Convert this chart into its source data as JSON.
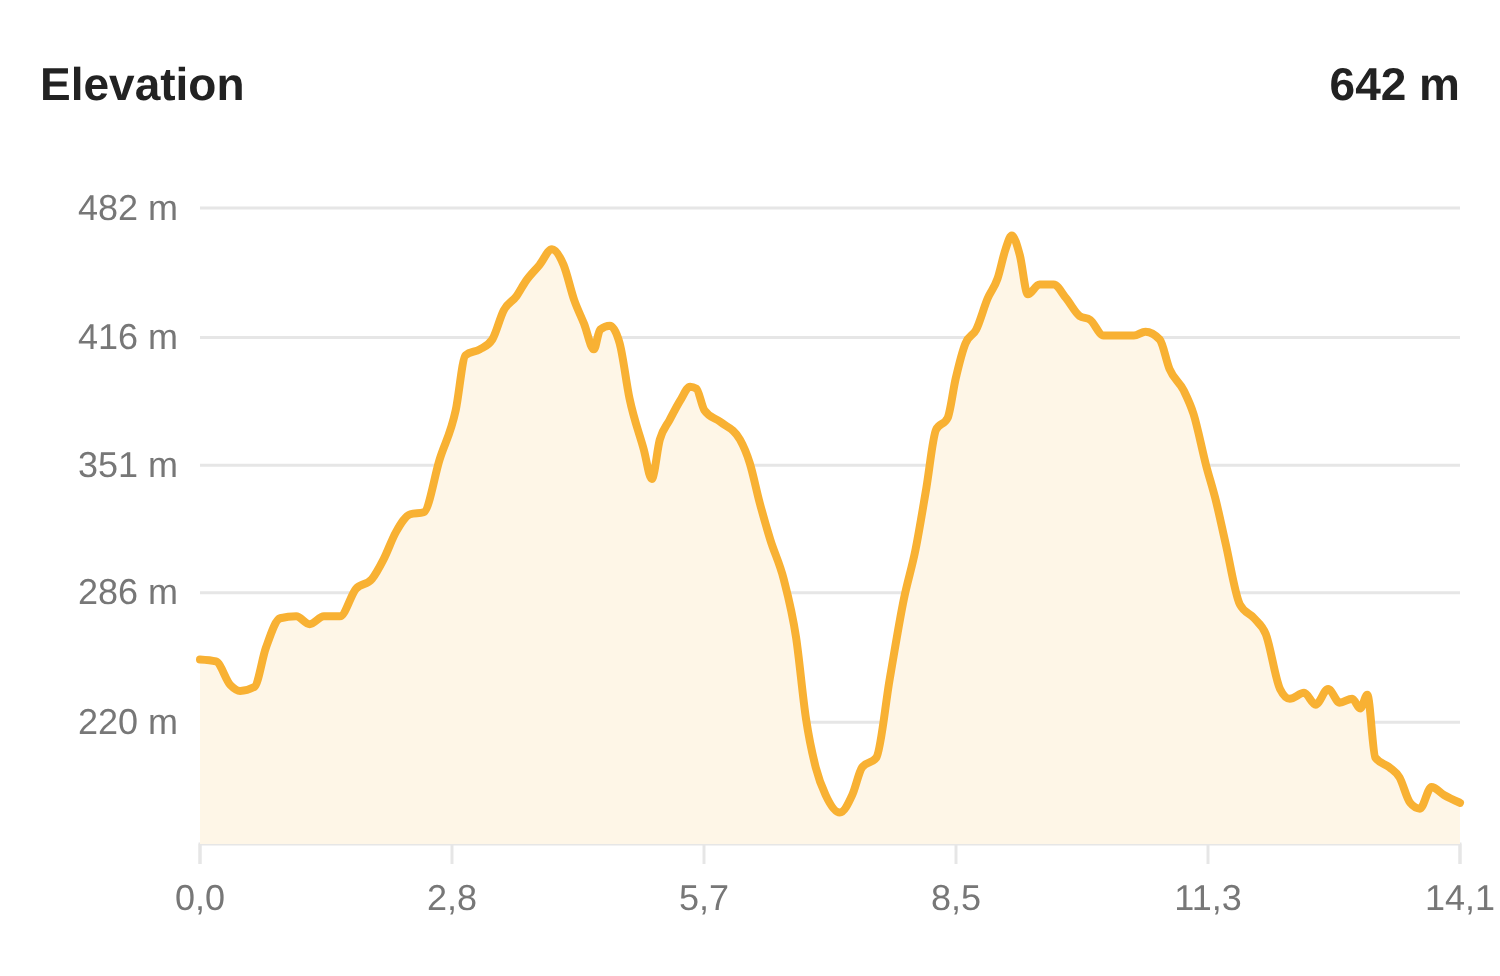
{
  "chart_data": {
    "type": "area",
    "title": "Elevation",
    "subtitle": "642 m",
    "x": [
      0,
      0.18,
      0.34,
      0.45,
      0.61,
      0.74,
      0.9,
      1.08,
      1.23,
      1.39,
      1.57,
      1.75,
      1.93,
      2.06,
      2.2,
      2.36,
      2.51,
      2.69,
      2.87,
      2.98,
      3.14,
      3.28,
      3.41,
      3.55,
      3.66,
      3.81,
      3.95,
      4.08,
      4.2,
      4.31,
      4.42,
      4.49,
      4.6,
      4.71,
      4.82,
      4.98,
      5.07,
      5.16,
      5.27,
      5.39,
      5.5,
      5.57,
      5.66,
      5.84,
      6.06,
      6.17,
      6.28,
      6.4,
      6.55,
      6.69,
      6.8,
      6.91,
      7.02,
      7.18,
      7.32,
      7.43,
      7.59,
      7.74,
      7.9,
      8.03,
      8.15,
      8.26,
      8.39,
      8.48,
      8.59,
      8.71,
      8.84,
      8.95,
      9.04,
      9.11,
      9.2,
      9.29,
      9.42,
      9.58,
      9.72,
      9.87,
      9.99,
      10.14,
      10.32,
      10.48,
      10.61,
      10.77,
      10.88,
      11.04,
      11.15,
      11.29,
      11.4,
      11.51,
      11.67,
      11.83,
      11.96,
      12.12,
      12.23,
      12.39,
      12.52,
      12.66,
      12.79,
      12.93,
      13.02,
      13.1,
      13.19,
      13.35,
      13.46,
      13.58,
      13.69,
      13.82,
      13.96,
      14.14
    ],
    "series": [
      {
        "color": "#f8b133",
        "values": [
          252,
          251,
          239,
          236,
          238,
          258,
          273,
          274,
          270,
          274,
          274,
          288,
          293,
          303,
          317,
          326,
          327,
          354,
          379,
          407,
          410,
          415,
          430,
          437,
          445,
          453,
          461,
          453,
          435,
          423,
          410,
          420,
          422,
          413,
          385,
          359,
          344,
          364,
          374,
          384,
          391,
          390,
          379,
          373,
          364,
          352,
          332,
          313,
          293,
          263,
          222,
          197,
          183,
          174,
          183,
          197,
          202,
          242,
          283,
          308,
          339,
          369,
          375,
          395,
          413,
          420,
          436,
          446,
          461,
          468,
          458,
          438,
          443,
          443,
          436,
          427,
          425,
          417,
          417,
          417,
          419,
          415,
          400,
          389,
          377,
          351,
          333,
          311,
          280,
          273,
          265,
          237,
          232,
          235,
          229,
          237,
          230,
          232,
          227,
          234,
          202,
          197,
          192,
          179,
          176,
          187,
          183,
          179
        ]
      }
    ],
    "xlim": [
      0,
      14.14
    ],
    "ylim": [
      158,
      482
    ],
    "xticks": [
      {
        "value": 0,
        "label": "0,0"
      },
      {
        "value": 2.828,
        "label": "2,8"
      },
      {
        "value": 5.656,
        "label": "5,7"
      },
      {
        "value": 8.484,
        "label": "8,5"
      },
      {
        "value": 11.312,
        "label": "11,3"
      },
      {
        "value": 14.14,
        "label": "14,1"
      }
    ],
    "yticks": [
      {
        "value": 220,
        "label": "220 m"
      },
      {
        "value": 286,
        "label": "286 m"
      },
      {
        "value": 351,
        "label": "351 m"
      },
      {
        "value": 416,
        "label": "416 m"
      },
      {
        "value": 482,
        "label": "482 m"
      }
    ],
    "grid": "y"
  }
}
